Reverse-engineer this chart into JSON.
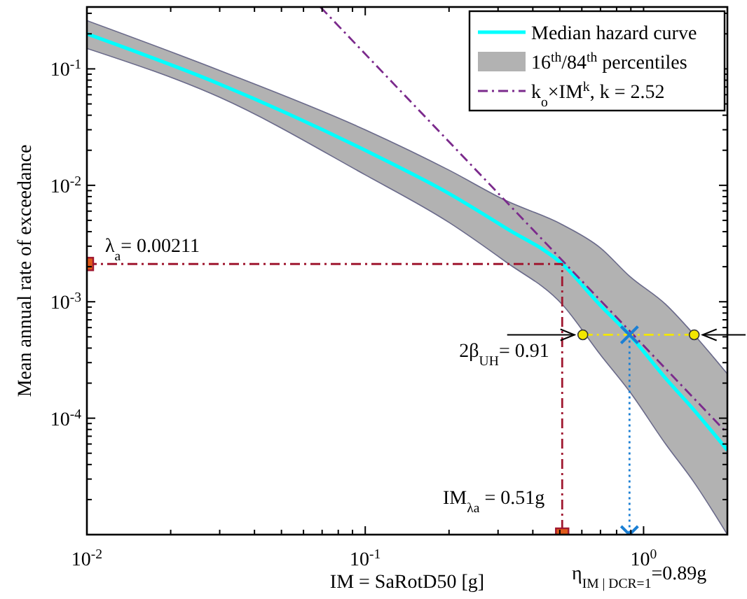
{
  "chart_data": {
    "type": "line",
    "xlabel": "IM = SaRotD50 [g]",
    "ylabel": "Mean annual rate of exceedance",
    "log": "xy",
    "xlim": [
      0.01,
      2.0
    ],
    "ylim": [
      1e-05,
      0.34
    ],
    "xticks": [
      {
        "value": 0.01,
        "label": "10$^{-2}$"
      },
      {
        "value": 0.02,
        "label": null
      },
      {
        "value": 0.03,
        "label": null
      },
      {
        "value": 0.04,
        "label": null
      },
      {
        "value": 0.05,
        "label": null
      },
      {
        "value": 0.06,
        "label": null
      },
      {
        "value": 0.07,
        "label": null
      },
      {
        "value": 0.08,
        "label": null
      },
      {
        "value": 0.09,
        "label": null
      },
      {
        "value": 0.1,
        "label": "10$^{-1}$"
      },
      {
        "value": 0.2,
        "label": null
      },
      {
        "value": 0.3,
        "label": null
      },
      {
        "value": 0.4,
        "label": null
      },
      {
        "value": 0.5,
        "label": null
      },
      {
        "value": 0.6,
        "label": null
      },
      {
        "value": 0.7,
        "label": null
      },
      {
        "value": 0.8,
        "label": null
      },
      {
        "value": 0.9,
        "label": null
      },
      {
        "value": 1,
        "label": "10$^{0}$"
      },
      {
        "value": 2,
        "label": null
      }
    ],
    "yticks": [
      {
        "value": 2e-05,
        "label": null
      },
      {
        "value": 3e-05,
        "label": null
      },
      {
        "value": 4e-05,
        "label": null
      },
      {
        "value": 5e-05,
        "label": null
      },
      {
        "value": 6e-05,
        "label": null
      },
      {
        "value": 7e-05,
        "label": null
      },
      {
        "value": 8e-05,
        "label": null
      },
      {
        "value": 9e-05,
        "label": null
      },
      {
        "value": 0.0001,
        "label": "10$^{-4}$"
      },
      {
        "value": 0.0002,
        "label": null
      },
      {
        "value": 0.0003,
        "label": null
      },
      {
        "value": 0.0004,
        "label": null
      },
      {
        "value": 0.0005,
        "label": null
      },
      {
        "value": 0.0006,
        "label": null
      },
      {
        "value": 0.0007,
        "label": null
      },
      {
        "value": 0.0008,
        "label": null
      },
      {
        "value": 0.0009,
        "label": null
      },
      {
        "value": 0.001,
        "label": "10$^{-3}$"
      },
      {
        "value": 0.002,
        "label": null
      },
      {
        "value": 0.003,
        "label": null
      },
      {
        "value": 0.004,
        "label": null
      },
      {
        "value": 0.005,
        "label": null
      },
      {
        "value": 0.006,
        "label": null
      },
      {
        "value": 0.007,
        "label": null
      },
      {
        "value": 0.008,
        "label": null
      },
      {
        "value": 0.009,
        "label": null
      },
      {
        "value": 0.01,
        "label": "10$^{-2}$"
      },
      {
        "value": 0.02,
        "label": null
      },
      {
        "value": 0.03,
        "label": null
      },
      {
        "value": 0.04,
        "label": null
      },
      {
        "value": 0.05,
        "label": null
      },
      {
        "value": 0.06,
        "label": null
      },
      {
        "value": 0.07,
        "label": null
      },
      {
        "value": 0.08,
        "label": null
      },
      {
        "value": 0.09,
        "label": null
      },
      {
        "value": 0.1,
        "label": "10$^{-1}$"
      },
      {
        "value": 0.2,
        "label": null
      },
      {
        "value": 0.3,
        "label": null
      }
    ],
    "grid": false,
    "legend": "top right",
    "series": [
      {
        "name": "Median hazard curve",
        "color": "#00ffff",
        "x": [
          0.01,
          0.03,
          0.1,
          0.2,
          0.32,
          0.51,
          0.7,
          0.89,
          1.2,
          1.52,
          2.0
        ],
        "values": [
          0.2,
          0.074,
          0.02,
          0.0085,
          0.0043,
          0.00211,
          0.00093,
          0.00052,
          0.00022,
          0.000117,
          5.3e-05
        ],
        "lower": [
          0.15,
          0.057,
          0.0123,
          0.0048,
          0.0022,
          0.00095,
          0.00035,
          0.00017,
          6e-05,
          2.8e-05,
          1e-05
        ],
        "upper": [
          0.26,
          0.097,
          0.03,
          0.0135,
          0.0074,
          0.0046,
          0.0029,
          0.00166,
          0.00095,
          0.00052,
          0.00024
        ]
      },
      {
        "name": "k$_{o}$×IM$^{k}$, k = 2.52",
        "color": "#7b2a8c",
        "line_style": "dashed",
        "x": [
          0.069,
          2.0
        ],
        "values": [
          0.34,
          7.4e-05
        ]
      },
      {
        "color": "#a01830",
        "line_style": "dashed",
        "x": [
          0.01,
          0.51,
          0.51
        ],
        "values": [
          0.00211,
          0.00211,
          1e-05
        ]
      },
      {
        "type": "scatter",
        "color": "#e05a1a",
        "marker": "square",
        "x": [
          0.01,
          0.51
        ],
        "values": [
          0.00211,
          1e-05
        ]
      },
      {
        "color": "#1a7fd4",
        "line_style": "dotted",
        "x": [
          0.89,
          0.89
        ],
        "values": [
          0.00052,
          1e-05
        ]
      },
      {
        "type": "scatter",
        "color": "#1a7fd4",
        "marker": "cross",
        "x": [
          0.89,
          0.89
        ],
        "values": [
          0.00052,
          1e-05
        ]
      },
      {
        "color": "#f2e600",
        "line_style": "dashed",
        "marker": "circle",
        "x": [
          0.605,
          1.52
        ],
        "values": [
          0.00052,
          0.00052
        ]
      }
    ],
    "annotations": [
      "λ$_{a}$= 0.00211",
      {
        "text": "2β$_{UH}$= 0.91",
        "x": 0.605,
        "y": 0.00052
      },
      "IM$_{λa}$ = 0.51g",
      "η$_{IM | DCR=1}$=0.89g",
      "16$^{th}$/84$^{th}$ percentiles"
    ]
  }
}
